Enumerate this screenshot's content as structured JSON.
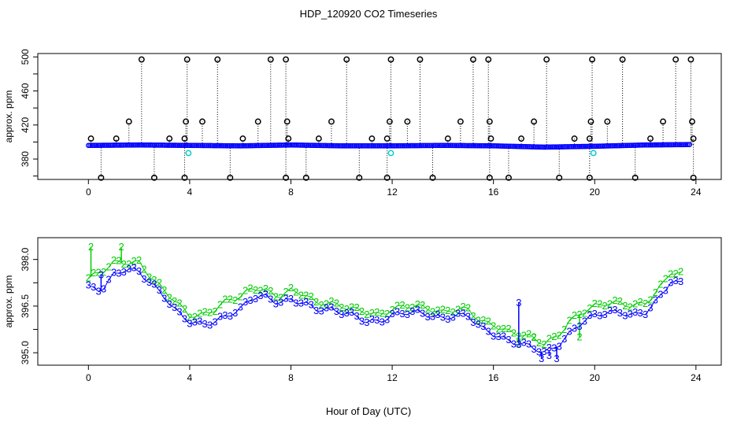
{
  "figure": {
    "title": "HDP_120920  CO2 Timeseries",
    "xlabel": "Hour of Day (UTC)"
  },
  "colors": {
    "flag_marker": "#000000",
    "series_main": "#0000ff",
    "series_alt": "#00cc00",
    "series_cyan": "#00cccc"
  },
  "chart_data": [
    {
      "type": "scatter",
      "panel": "top",
      "ylabel": "approx. ppm",
      "xlim": [
        -2,
        25
      ],
      "ylim": [
        356,
        504
      ],
      "x_ticks": [
        0,
        4,
        8,
        12,
        16,
        20,
        24
      ],
      "y_ticks": [
        380,
        420,
        460,
        500
      ],
      "y_minor_ticks": [
        360,
        400,
        440,
        480
      ],
      "baseline": [
        [
          0.0,
          396
        ],
        [
          2.0,
          396.5
        ],
        [
          4.0,
          396
        ],
        [
          6.0,
          395.5
        ],
        [
          8.0,
          396.5
        ],
        [
          10.0,
          395.5
        ],
        [
          12.0,
          395.5
        ],
        [
          14.0,
          396
        ],
        [
          16.0,
          395.5
        ],
        [
          18.0,
          394
        ],
        [
          20.0,
          395
        ],
        [
          22.0,
          396.5
        ],
        [
          23.8,
          397
        ]
      ],
      "flagged_high": [
        {
          "x": 0.1,
          "y": 404
        },
        {
          "x": 1.1,
          "y": 404
        },
        {
          "x": 1.6,
          "y": 424
        },
        {
          "x": 2.1,
          "y": 497
        },
        {
          "x": 3.2,
          "y": 404
        },
        {
          "x": 3.8,
          "y": 404
        },
        {
          "x": 3.85,
          "y": 424
        },
        {
          "x": 3.9,
          "y": 497
        },
        {
          "x": 4.5,
          "y": 424
        },
        {
          "x": 5.1,
          "y": 497
        },
        {
          "x": 6.1,
          "y": 404
        },
        {
          "x": 6.7,
          "y": 424
        },
        {
          "x": 7.2,
          "y": 497
        },
        {
          "x": 7.8,
          "y": 497
        },
        {
          "x": 7.85,
          "y": 424
        },
        {
          "x": 7.9,
          "y": 404
        },
        {
          "x": 9.1,
          "y": 404
        },
        {
          "x": 9.6,
          "y": 424
        },
        {
          "x": 10.2,
          "y": 497
        },
        {
          "x": 11.2,
          "y": 404
        },
        {
          "x": 11.8,
          "y": 404
        },
        {
          "x": 11.9,
          "y": 424
        },
        {
          "x": 11.95,
          "y": 497
        },
        {
          "x": 12.6,
          "y": 424
        },
        {
          "x": 13.1,
          "y": 497
        },
        {
          "x": 14.2,
          "y": 404
        },
        {
          "x": 14.7,
          "y": 424
        },
        {
          "x": 15.2,
          "y": 497
        },
        {
          "x": 15.8,
          "y": 497
        },
        {
          "x": 15.85,
          "y": 424
        },
        {
          "x": 15.9,
          "y": 404
        },
        {
          "x": 17.1,
          "y": 404
        },
        {
          "x": 17.6,
          "y": 424
        },
        {
          "x": 18.1,
          "y": 497
        },
        {
          "x": 19.2,
          "y": 404
        },
        {
          "x": 19.8,
          "y": 404
        },
        {
          "x": 19.85,
          "y": 424
        },
        {
          "x": 19.9,
          "y": 497
        },
        {
          "x": 20.5,
          "y": 424
        },
        {
          "x": 21.1,
          "y": 497
        },
        {
          "x": 22.2,
          "y": 404
        },
        {
          "x": 22.7,
          "y": 424
        },
        {
          "x": 23.2,
          "y": 497
        },
        {
          "x": 23.8,
          "y": 497
        },
        {
          "x": 23.85,
          "y": 424
        },
        {
          "x": 23.9,
          "y": 404
        }
      ],
      "flagged_low": [
        {
          "x": 0.5,
          "y": 358
        },
        {
          "x": 2.6,
          "y": 358
        },
        {
          "x": 3.8,
          "y": 358
        },
        {
          "x": 5.6,
          "y": 358
        },
        {
          "x": 7.8,
          "y": 358
        },
        {
          "x": 8.6,
          "y": 358
        },
        {
          "x": 10.7,
          "y": 358
        },
        {
          "x": 11.8,
          "y": 358
        },
        {
          "x": 13.6,
          "y": 358
        },
        {
          "x": 15.85,
          "y": 358
        },
        {
          "x": 16.6,
          "y": 358
        },
        {
          "x": 18.6,
          "y": 358
        },
        {
          "x": 19.8,
          "y": 358
        },
        {
          "x": 21.6,
          "y": 358
        },
        {
          "x": 23.9,
          "y": 358
        }
      ],
      "cyan_points": [
        {
          "x": 3.95,
          "y": 387
        },
        {
          "x": 11.95,
          "y": 387
        },
        {
          "x": 19.95,
          "y": 387
        }
      ]
    },
    {
      "type": "scatter",
      "panel": "bottom",
      "ylabel": "approx. ppm",
      "xlim": [
        -2,
        25
      ],
      "ylim": [
        394.6,
        398.7
      ],
      "x_ticks": [
        0,
        4,
        8,
        12,
        16,
        20,
        24
      ],
      "y_ticks": [
        395.0,
        396.5,
        398.0
      ],
      "y_minor_ticks": [
        395.75,
        397.25
      ],
      "series": [
        {
          "marker": "2",
          "points": [
            [
              0.0,
              397.4
            ],
            [
              0.5,
              397.6
            ],
            [
              1.0,
              397.9
            ],
            [
              1.5,
              397.9
            ],
            [
              2.0,
              397.9
            ],
            [
              2.5,
              397.4
            ],
            [
              3.0,
              397.0
            ],
            [
              3.5,
              396.6
            ],
            [
              4.0,
              396.2
            ],
            [
              4.5,
              396.2
            ],
            [
              5.0,
              396.4
            ],
            [
              5.5,
              396.7
            ],
            [
              6.0,
              396.8
            ],
            [
              6.5,
              397.1
            ],
            [
              7.0,
              397.0
            ],
            [
              7.5,
              396.8
            ],
            [
              8.0,
              397.0
            ],
            [
              8.5,
              396.9
            ],
            [
              9.0,
              396.6
            ],
            [
              9.5,
              396.6
            ],
            [
              10.0,
              396.5
            ],
            [
              10.5,
              396.4
            ],
            [
              11.0,
              396.3
            ],
            [
              11.5,
              396.2
            ],
            [
              12.0,
              396.4
            ],
            [
              12.5,
              396.5
            ],
            [
              13.0,
              396.5
            ],
            [
              13.5,
              396.4
            ],
            [
              14.0,
              396.3
            ],
            [
              14.5,
              396.4
            ],
            [
              15.0,
              396.4
            ],
            [
              15.5,
              396.0
            ],
            [
              16.0,
              395.9
            ],
            [
              16.5,
              395.7
            ],
            [
              17.0,
              395.6
            ],
            [
              17.5,
              395.5
            ],
            [
              18.0,
              395.3
            ],
            [
              18.5,
              395.5
            ],
            [
              19.0,
              396.0
            ],
            [
              19.5,
              396.3
            ],
            [
              20.0,
              396.5
            ],
            [
              20.5,
              396.6
            ],
            [
              21.0,
              396.6
            ],
            [
              21.5,
              396.5
            ],
            [
              22.0,
              396.6
            ],
            [
              22.5,
              397.0
            ],
            [
              23.0,
              397.6
            ],
            [
              23.5,
              397.5
            ]
          ],
          "spikes": [
            [
              0.1,
              398.4
            ],
            [
              1.3,
              398.4
            ],
            [
              17.0,
              395.3
            ],
            [
              17.6,
              395.5
            ],
            [
              19.4,
              395.5
            ]
          ]
        },
        {
          "marker": "3",
          "points": [
            [
              0.0,
              397.1
            ],
            [
              0.5,
              397.0
            ],
            [
              1.0,
              397.5
            ],
            [
              1.5,
              397.7
            ],
            [
              2.0,
              397.6
            ],
            [
              2.5,
              397.2
            ],
            [
              3.0,
              396.8
            ],
            [
              3.5,
              396.3
            ],
            [
              4.0,
              396.0
            ],
            [
              4.5,
              395.9
            ],
            [
              5.0,
              396.0
            ],
            [
              5.5,
              396.2
            ],
            [
              6.0,
              396.4
            ],
            [
              6.5,
              396.8
            ],
            [
              7.0,
              396.8
            ],
            [
              7.5,
              396.6
            ],
            [
              8.0,
              396.7
            ],
            [
              8.5,
              396.6
            ],
            [
              9.0,
              396.4
            ],
            [
              9.5,
              396.4
            ],
            [
              10.0,
              396.3
            ],
            [
              10.5,
              396.2
            ],
            [
              11.0,
              396.0
            ],
            [
              11.5,
              396.0
            ],
            [
              12.0,
              396.2
            ],
            [
              12.5,
              396.3
            ],
            [
              13.0,
              396.3
            ],
            [
              13.5,
              396.2
            ],
            [
              14.0,
              396.1
            ],
            [
              14.5,
              396.2
            ],
            [
              15.0,
              396.2
            ],
            [
              15.5,
              395.8
            ],
            [
              16.0,
              395.6
            ],
            [
              16.5,
              395.4
            ],
            [
              17.0,
              395.3
            ],
            [
              17.5,
              395.2
            ],
            [
              18.0,
              395.0
            ],
            [
              18.5,
              395.2
            ],
            [
              19.0,
              395.6
            ],
            [
              19.5,
              396.0
            ],
            [
              20.0,
              396.2
            ],
            [
              20.5,
              396.3
            ],
            [
              21.0,
              396.3
            ],
            [
              21.5,
              396.2
            ],
            [
              22.0,
              396.3
            ],
            [
              22.5,
              396.7
            ],
            [
              23.0,
              397.3
            ],
            [
              23.5,
              397.2
            ]
          ],
          "spikes": [
            [
              0.5,
              397.5
            ],
            [
              17.0,
              396.6
            ],
            [
              17.9,
              394.8
            ],
            [
              18.2,
              394.9
            ],
            [
              18.5,
              394.8
            ]
          ]
        }
      ]
    }
  ]
}
